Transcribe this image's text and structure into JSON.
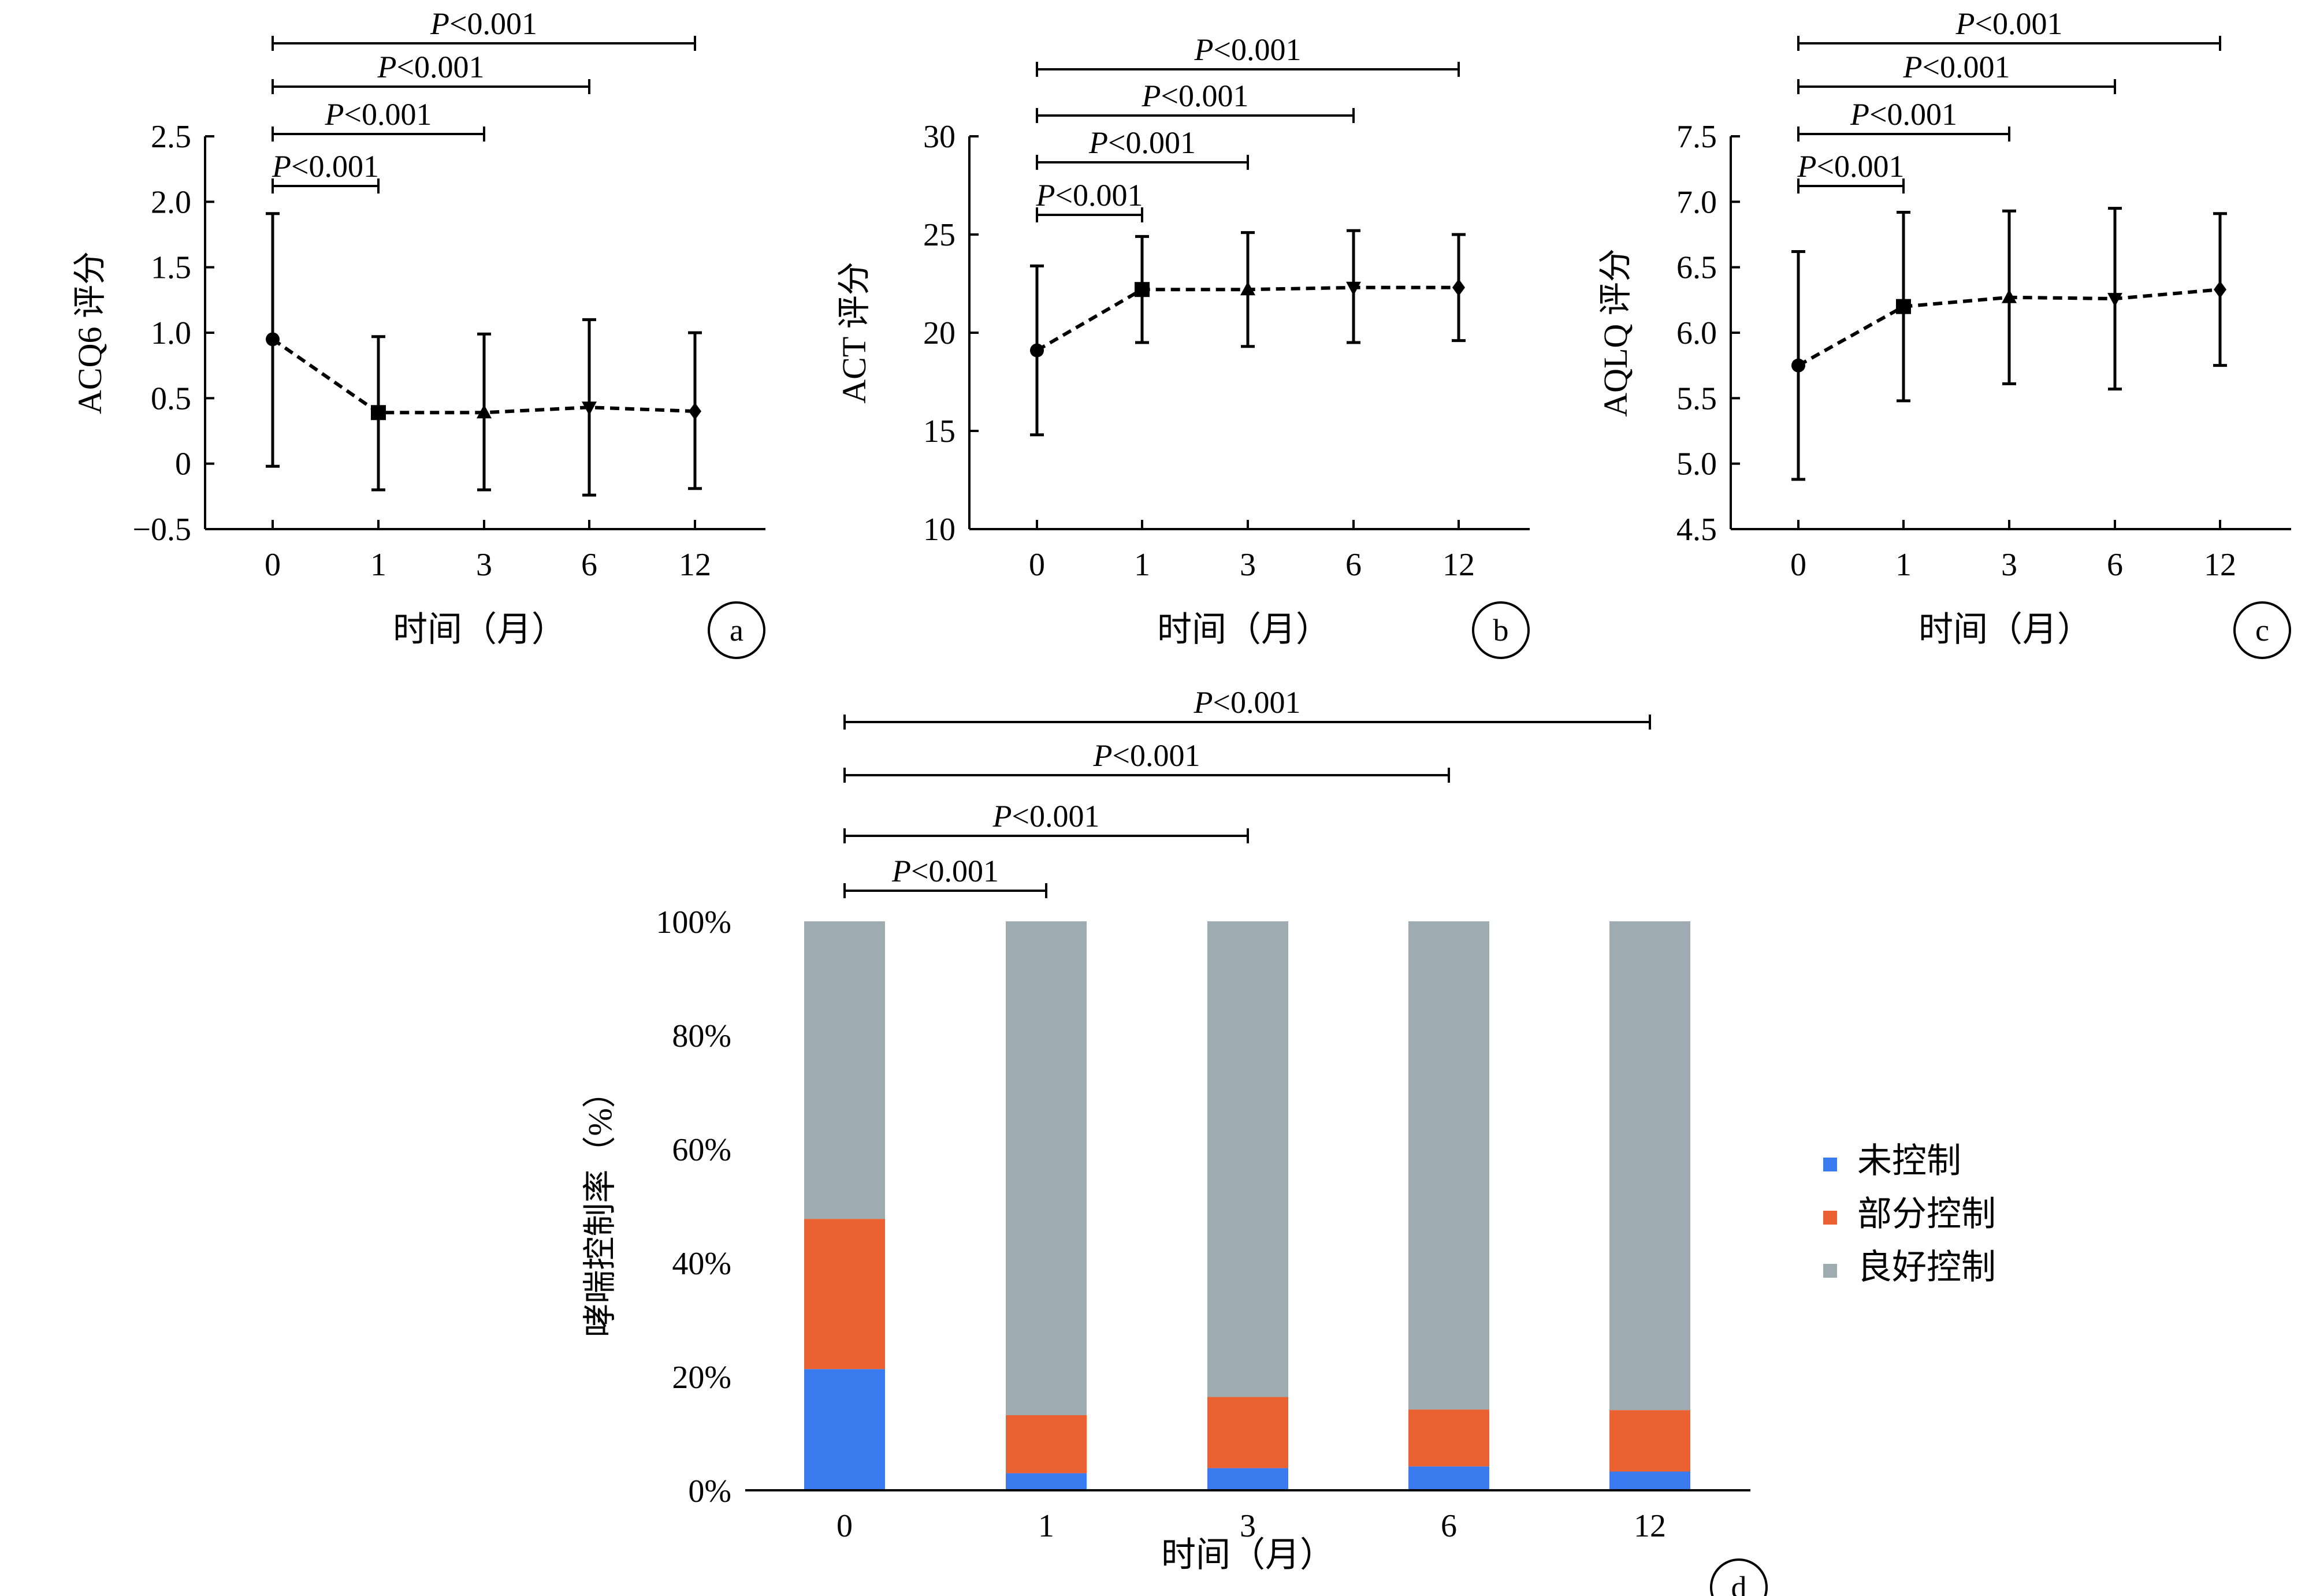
{
  "chart_data": [
    {
      "id": "a",
      "type": "line",
      "panel_label": "a",
      "ylabel": "ACQ6 评分",
      "xlabel": "时间（月）",
      "categories": [
        "0",
        "1",
        "3",
        "6",
        "12"
      ],
      "ylim": [
        -0.5,
        2.5
      ],
      "yticks": [
        "−0.5",
        "0",
        "0.5",
        "1.0",
        "1.5",
        "2.0",
        "2.5"
      ],
      "ytick_values": [
        -0.5,
        0,
        0.5,
        1.0,
        1.5,
        2.0,
        2.5
      ],
      "series": [
        {
          "values": [
            0.95,
            0.39,
            0.39,
            0.43,
            0.4
          ],
          "err_low": [
            -0.02,
            -0.2,
            -0.2,
            -0.24,
            -0.19
          ],
          "err_high": [
            1.91,
            0.97,
            0.99,
            1.1,
            1.0
          ],
          "markers": [
            "circle",
            "square",
            "triangle-up",
            "triangle-down",
            "diamond"
          ]
        }
      ],
      "significance": [
        {
          "from": 0,
          "to": 1,
          "label_italic": "P",
          "label_rest": "<0.001"
        },
        {
          "from": 0,
          "to": 2,
          "label_italic": "P",
          "label_rest": "<0.001"
        },
        {
          "from": 0,
          "to": 3,
          "label_italic": "P",
          "label_rest": "<0.001"
        },
        {
          "from": 0,
          "to": 4,
          "label_italic": "P",
          "label_rest": "<0.001"
        }
      ],
      "grid": false
    },
    {
      "id": "b",
      "type": "line",
      "panel_label": "b",
      "ylabel": "ACT 评分",
      "xlabel": "时间（月）",
      "categories": [
        "0",
        "1",
        "3",
        "6",
        "12"
      ],
      "ylim": [
        10,
        30
      ],
      "yticks": [
        "10",
        "15",
        "20",
        "25",
        "30"
      ],
      "ytick_values": [
        10,
        15,
        20,
        25,
        30
      ],
      "series": [
        {
          "values": [
            19.1,
            22.2,
            22.2,
            22.3,
            22.3
          ],
          "err_low": [
            14.8,
            19.5,
            19.3,
            19.5,
            19.6
          ],
          "err_high": [
            23.4,
            24.9,
            25.1,
            25.2,
            25.0
          ],
          "markers": [
            "circle",
            "square",
            "triangle-up",
            "triangle-down",
            "diamond"
          ]
        }
      ],
      "significance": [
        {
          "from": 0,
          "to": 1,
          "label_italic": "P",
          "label_rest": "<0.001"
        },
        {
          "from": 0,
          "to": 2,
          "label_italic": "P",
          "label_rest": "<0.001"
        },
        {
          "from": 0,
          "to": 3,
          "label_italic": "P",
          "label_rest": "<0.001"
        },
        {
          "from": 0,
          "to": 4,
          "label_italic": "P",
          "label_rest": "<0.001"
        }
      ],
      "grid": false
    },
    {
      "id": "c",
      "type": "line",
      "panel_label": "c",
      "ylabel": "AQLQ 评分",
      "xlabel": "时间（月）",
      "categories": [
        "0",
        "1",
        "3",
        "6",
        "12"
      ],
      "ylim": [
        4.5,
        7.5
      ],
      "yticks": [
        "4.5",
        "5.0",
        "5.5",
        "6.0",
        "6.5",
        "7.0",
        "7.5"
      ],
      "ytick_values": [
        4.5,
        5.0,
        5.5,
        6.0,
        6.5,
        7.0,
        7.5
      ],
      "series": [
        {
          "values": [
            5.75,
            6.2,
            6.27,
            6.26,
            6.33
          ],
          "err_low": [
            4.88,
            5.48,
            5.61,
            5.57,
            5.75
          ],
          "err_high": [
            6.62,
            6.92,
            6.93,
            6.95,
            6.91
          ],
          "markers": [
            "circle",
            "square",
            "triangle-up",
            "triangle-down",
            "diamond"
          ]
        }
      ],
      "significance": [
        {
          "from": 0,
          "to": 1,
          "label_italic": "P",
          "label_rest": "<0.001"
        },
        {
          "from": 0,
          "to": 2,
          "label_italic": "P",
          "label_rest": "<0.001"
        },
        {
          "from": 0,
          "to": 3,
          "label_italic": "P",
          "label_rest": "<0.001"
        },
        {
          "from": 0,
          "to": 4,
          "label_italic": "P",
          "label_rest": "<0.001"
        }
      ],
      "grid": false
    },
    {
      "id": "d",
      "type": "bar",
      "stacked": true,
      "panel_label": "d",
      "ylabel": "哮喘控制率（%）",
      "xlabel": "时间（月）",
      "categories": [
        "0",
        "1",
        "3",
        "6",
        "12"
      ],
      "ylim": [
        0,
        100
      ],
      "yticks": [
        "0%",
        "20%",
        "40%",
        "60%",
        "80%",
        "100%"
      ],
      "ytick_values": [
        0,
        20,
        40,
        60,
        80,
        100
      ],
      "series": [
        {
          "name": "未控制",
          "color": "#3b7bf0",
          "values": [
            21.3,
            3.0,
            3.9,
            4.2,
            3.3
          ]
        },
        {
          "name": "部分控制",
          "color": "#ea6231",
          "values": [
            26.4,
            10.2,
            12.5,
            10.0,
            10.8
          ]
        },
        {
          "name": "良好控制",
          "color": "#9eacb2",
          "values": [
            52.3,
            86.8,
            83.6,
            85.8,
            85.9
          ]
        }
      ],
      "legend": "right",
      "significance": [
        {
          "from": 0,
          "to": 1,
          "label_italic": "P",
          "label_rest": "<0.001"
        },
        {
          "from": 0,
          "to": 2,
          "label_italic": "P",
          "label_rest": "<0.001"
        },
        {
          "from": 0,
          "to": 3,
          "label_italic": "P",
          "label_rest": "<0.001"
        },
        {
          "from": 0,
          "to": 4,
          "label_italic": "P",
          "label_rest": "<0.001"
        }
      ],
      "grid": false
    }
  ]
}
